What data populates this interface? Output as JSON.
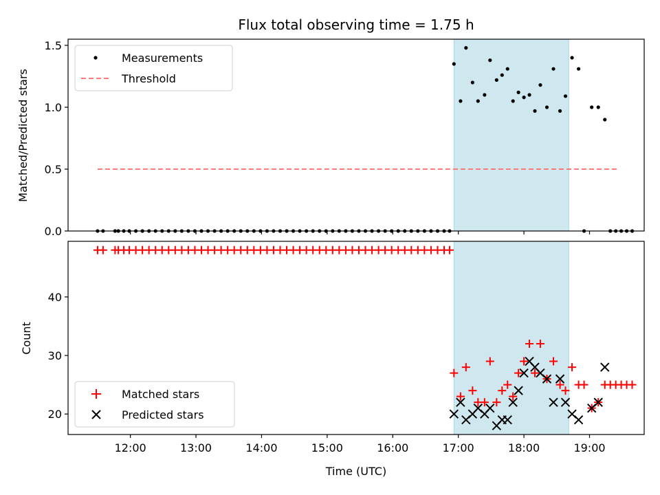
{
  "chart_data": [
    {
      "type": "scatter",
      "title": "Flux total observing time = 1.75 h",
      "ylabel": "Matched/Predicted stars",
      "xlim": [
        "11:03",
        "19:50"
      ],
      "ylim": [
        0,
        1.55
      ],
      "yticks": [
        "0.0",
        "0.5",
        "1.0",
        "1.5"
      ],
      "shaded_span": {
        "start": "16:56",
        "end": "18:41",
        "color": "#cfe8ef"
      },
      "threshold": {
        "name": "Threshold",
        "value": 0.5,
        "x_start": "11:30",
        "x_end": "19:25",
        "color": "#ff7b7b"
      },
      "legend": {
        "position": "upper left",
        "entries": [
          "Measurements",
          "Threshold"
        ]
      },
      "series": [
        {
          "name": "Measurements",
          "marker": "dot",
          "color": "#000000",
          "points": [
            [
              "11:30",
              0
            ],
            [
              "11:35",
              0
            ],
            [
              "11:46",
              0
            ],
            [
              "11:49",
              0
            ],
            [
              "11:54",
              0
            ],
            [
              "11:59",
              0
            ],
            [
              "12:05",
              0
            ],
            [
              "12:11",
              0
            ],
            [
              "12:17",
              0
            ],
            [
              "12:23",
              0
            ],
            [
              "12:29",
              0
            ],
            [
              "12:35",
              0
            ],
            [
              "12:41",
              0
            ],
            [
              "12:47",
              0
            ],
            [
              "12:53",
              0
            ],
            [
              "12:59",
              0
            ],
            [
              "13:05",
              0
            ],
            [
              "13:11",
              0
            ],
            [
              "13:17",
              0
            ],
            [
              "13:23",
              0
            ],
            [
              "13:29",
              0
            ],
            [
              "13:35",
              0
            ],
            [
              "13:41",
              0
            ],
            [
              "13:47",
              0
            ],
            [
              "13:53",
              0
            ],
            [
              "13:59",
              0
            ],
            [
              "14:05",
              0
            ],
            [
              "14:11",
              0
            ],
            [
              "14:17",
              0
            ],
            [
              "14:23",
              0
            ],
            [
              "14:29",
              0
            ],
            [
              "14:35",
              0
            ],
            [
              "14:41",
              0
            ],
            [
              "14:47",
              0
            ],
            [
              "14:53",
              0
            ],
            [
              "14:59",
              0
            ],
            [
              "15:05",
              0
            ],
            [
              "15:11",
              0
            ],
            [
              "15:17",
              0
            ],
            [
              "15:23",
              0
            ],
            [
              "15:29",
              0
            ],
            [
              "15:35",
              0
            ],
            [
              "15:41",
              0
            ],
            [
              "15:47",
              0
            ],
            [
              "15:53",
              0
            ],
            [
              "15:59",
              0
            ],
            [
              "16:05",
              0
            ],
            [
              "16:11",
              0
            ],
            [
              "16:17",
              0
            ],
            [
              "16:23",
              0
            ],
            [
              "16:29",
              0
            ],
            [
              "16:35",
              0
            ],
            [
              "16:41",
              0
            ],
            [
              "16:47",
              0
            ],
            [
              "16:52",
              0
            ],
            [
              "16:56",
              1.35
            ],
            [
              "17:02",
              1.05
            ],
            [
              "17:07",
              1.48
            ],
            [
              "17:13",
              1.2
            ],
            [
              "17:18",
              1.05
            ],
            [
              "17:24",
              1.1
            ],
            [
              "17:29",
              1.38
            ],
            [
              "17:35",
              1.22
            ],
            [
              "17:40",
              1.26
            ],
            [
              "17:45",
              1.31
            ],
            [
              "17:50",
              1.05
            ],
            [
              "17:55",
              1.12
            ],
            [
              "18:00",
              1.08
            ],
            [
              "18:05",
              1.1
            ],
            [
              "18:10",
              0.97
            ],
            [
              "18:15",
              1.18
            ],
            [
              "18:21",
              1.0
            ],
            [
              "18:27",
              1.31
            ],
            [
              "18:33",
              0.97
            ],
            [
              "18:38",
              1.09
            ],
            [
              "18:44",
              1.4
            ],
            [
              "18:50",
              1.31
            ],
            [
              "18:55",
              0
            ],
            [
              "19:02",
              1.0
            ],
            [
              "19:08",
              1.0
            ],
            [
              "19:14",
              0.9
            ],
            [
              "19:19",
              0
            ],
            [
              "19:24",
              0
            ],
            [
              "19:29",
              0
            ],
            [
              "19:34",
              0
            ],
            [
              "19:39",
              0
            ]
          ]
        }
      ]
    },
    {
      "type": "scatter",
      "xlabel": "Time (UTC)",
      "ylabel": "Count",
      "xlim": [
        "11:03",
        "19:50"
      ],
      "ylim": [
        16.5,
        49.5
      ],
      "xticks": [
        "12:00",
        "13:00",
        "14:00",
        "15:00",
        "16:00",
        "17:00",
        "18:00",
        "19:00"
      ],
      "yticks": [
        "20",
        "30",
        "40"
      ],
      "shaded_span": {
        "start": "16:56",
        "end": "18:41",
        "color": "#cfe8ef"
      },
      "legend": {
        "position": "lower left",
        "entries": [
          "Matched stars",
          "Predicted stars"
        ]
      },
      "series": [
        {
          "name": "Matched stars",
          "marker": "plus",
          "color": "#ff0000",
          "points": [
            [
              "11:30",
              48
            ],
            [
              "11:35",
              48
            ],
            [
              "11:46",
              48
            ],
            [
              "11:49",
              48
            ],
            [
              "11:54",
              48
            ],
            [
              "11:59",
              48
            ],
            [
              "12:05",
              48
            ],
            [
              "12:11",
              48
            ],
            [
              "12:17",
              48
            ],
            [
              "12:23",
              48
            ],
            [
              "12:29",
              48
            ],
            [
              "12:35",
              48
            ],
            [
              "12:41",
              48
            ],
            [
              "12:47",
              48
            ],
            [
              "12:53",
              48
            ],
            [
              "12:59",
              48
            ],
            [
              "13:05",
              48
            ],
            [
              "13:11",
              48
            ],
            [
              "13:17",
              48
            ],
            [
              "13:23",
              48
            ],
            [
              "13:29",
              48
            ],
            [
              "13:35",
              48
            ],
            [
              "13:41",
              48
            ],
            [
              "13:47",
              48
            ],
            [
              "13:53",
              48
            ],
            [
              "13:59",
              48
            ],
            [
              "14:05",
              48
            ],
            [
              "14:11",
              48
            ],
            [
              "14:17",
              48
            ],
            [
              "14:23",
              48
            ],
            [
              "14:29",
              48
            ],
            [
              "14:35",
              48
            ],
            [
              "14:41",
              48
            ],
            [
              "14:47",
              48
            ],
            [
              "14:53",
              48
            ],
            [
              "14:59",
              48
            ],
            [
              "15:05",
              48
            ],
            [
              "15:11",
              48
            ],
            [
              "15:17",
              48
            ],
            [
              "15:23",
              48
            ],
            [
              "15:29",
              48
            ],
            [
              "15:35",
              48
            ],
            [
              "15:41",
              48
            ],
            [
              "15:47",
              48
            ],
            [
              "15:53",
              48
            ],
            [
              "15:59",
              48
            ],
            [
              "16:05",
              48
            ],
            [
              "16:11",
              48
            ],
            [
              "16:17",
              48
            ],
            [
              "16:23",
              48
            ],
            [
              "16:29",
              48
            ],
            [
              "16:35",
              48
            ],
            [
              "16:41",
              48
            ],
            [
              "16:47",
              48
            ],
            [
              "16:52",
              48
            ],
            [
              "16:56",
              27
            ],
            [
              "17:02",
              23
            ],
            [
              "17:07",
              28
            ],
            [
              "17:13",
              24
            ],
            [
              "17:18",
              22
            ],
            [
              "17:24",
              22
            ],
            [
              "17:29",
              29
            ],
            [
              "17:35",
              22
            ],
            [
              "17:40",
              24
            ],
            [
              "17:45",
              25
            ],
            [
              "17:50",
              23
            ],
            [
              "17:55",
              27
            ],
            [
              "18:00",
              29
            ],
            [
              "18:05",
              32
            ],
            [
              "18:10",
              27
            ],
            [
              "18:15",
              32
            ],
            [
              "18:21",
              26
            ],
            [
              "18:27",
              29
            ],
            [
              "18:33",
              25
            ],
            [
              "18:38",
              24
            ],
            [
              "18:44",
              28
            ],
            [
              "18:50",
              25
            ],
            [
              "18:55",
              25
            ],
            [
              "19:02",
              21
            ],
            [
              "19:08",
              22
            ],
            [
              "19:14",
              25
            ],
            [
              "19:19",
              25
            ],
            [
              "19:24",
              25
            ],
            [
              "19:29",
              25
            ],
            [
              "19:34",
              25
            ],
            [
              "19:39",
              25
            ]
          ]
        },
        {
          "name": "Predicted stars",
          "marker": "x",
          "color": "#000000",
          "points": [
            [
              "16:56",
              20
            ],
            [
              "17:02",
              22
            ],
            [
              "17:07",
              19
            ],
            [
              "17:13",
              20
            ],
            [
              "17:18",
              21
            ],
            [
              "17:24",
              20
            ],
            [
              "17:29",
              21
            ],
            [
              "17:35",
              18
            ],
            [
              "17:40",
              19
            ],
            [
              "17:45",
              19
            ],
            [
              "17:50",
              22
            ],
            [
              "17:55",
              24
            ],
            [
              "18:00",
              27
            ],
            [
              "18:05",
              29
            ],
            [
              "18:10",
              28
            ],
            [
              "18:15",
              27
            ],
            [
              "18:21",
              26
            ],
            [
              "18:27",
              22
            ],
            [
              "18:33",
              26
            ],
            [
              "18:38",
              22
            ],
            [
              "18:44",
              20
            ],
            [
              "18:50",
              19
            ],
            [
              "19:02",
              21
            ],
            [
              "19:08",
              22
            ],
            [
              "19:14",
              28
            ]
          ]
        }
      ]
    }
  ]
}
